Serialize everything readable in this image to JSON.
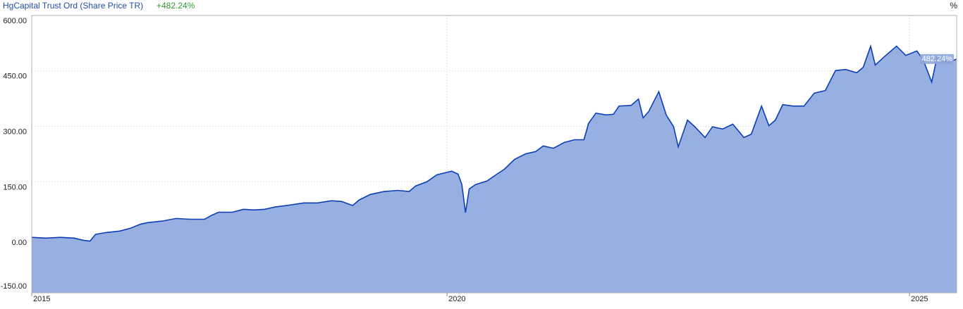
{
  "chart_data": {
    "type": "area",
    "series": [
      {
        "name": "HgCapital Trust Ord (Share Price TR)",
        "change_label": "+482.24%",
        "end_value_label": "482.24%",
        "color": "#0b3fb3",
        "fill": "#98afe1",
        "x": [
          2015.51,
          2015.66,
          2015.82,
          2015.97,
          2016.07,
          2016.14,
          2016.2,
          2016.31,
          2016.46,
          2016.58,
          2016.69,
          2016.77,
          2016.92,
          2017.07,
          2017.23,
          2017.38,
          2017.45,
          2017.53,
          2017.68,
          2017.8,
          2017.91,
          2018.03,
          2018.14,
          2018.29,
          2018.45,
          2018.6,
          2018.75,
          2018.86,
          2018.98,
          2019.05,
          2019.17,
          2019.32,
          2019.47,
          2019.59,
          2019.66,
          2019.78,
          2019.89,
          2020.05,
          2020.12,
          2020.16,
          2020.2,
          2020.24,
          2020.31,
          2020.43,
          2020.54,
          2020.62,
          2020.73,
          2020.85,
          2020.96,
          2021.04,
          2021.15,
          2021.27,
          2021.38,
          2021.48,
          2021.53,
          2021.61,
          2021.72,
          2021.8,
          2021.86,
          2021.99,
          2022.07,
          2022.12,
          2022.18,
          2022.29,
          2022.37,
          2022.45,
          2022.5,
          2022.6,
          2022.68,
          2022.79,
          2022.87,
          2022.98,
          2023.09,
          2023.21,
          2023.29,
          2023.4,
          2023.48,
          2023.55,
          2023.63,
          2023.74,
          2023.86,
          2023.97,
          2024.09,
          2024.2,
          2024.31,
          2024.43,
          2024.5,
          2024.58,
          2024.63,
          2024.73,
          2024.86,
          2024.96,
          2025.08,
          2025.15,
          2025.24,
          2025.3,
          2025.42,
          2025.51
        ],
        "values": [
          0,
          -2,
          0,
          -2,
          -8,
          -10,
          8,
          13,
          17,
          25,
          36,
          40,
          44,
          51,
          49,
          49,
          59,
          68,
          68,
          76,
          74,
          76,
          82,
          87,
          93,
          93,
          99,
          97,
          86,
          101,
          116,
          124,
          127,
          124,
          139,
          150,
          169,
          179,
          171,
          143,
          67,
          131,
          143,
          152,
          171,
          184,
          211,
          226,
          232,
          247,
          241,
          257,
          264,
          264,
          308,
          336,
          331,
          333,
          355,
          357,
          374,
          323,
          340,
          394,
          331,
          299,
          245,
          317,
          299,
          270,
          299,
          293,
          306,
          270,
          279,
          355,
          302,
          317,
          359,
          355,
          355,
          390,
          397,
          451,
          454,
          445,
          460,
          517,
          466,
          489,
          517,
          492,
          504,
          479,
          420,
          489,
          473,
          482.24
        ]
      }
    ],
    "unit_label": "%",
    "xlim": [
      2015.51,
      2025.51
    ],
    "xticks": [
      {
        "value": 2015.51,
        "label": "2015"
      },
      2020,
      2025
    ],
    "ylim": [
      -150,
      600
    ],
    "yticks": [
      {
        "value": -150,
        "label": "-150.00"
      },
      {
        "value": 0,
        "label": "0.00"
      },
      {
        "value": 150,
        "label": "150.00"
      },
      {
        "value": 300,
        "label": "300.00"
      },
      {
        "value": 450,
        "label": "450.00"
      },
      {
        "value": 600,
        "label": "600.00"
      }
    ],
    "grid": true
  }
}
